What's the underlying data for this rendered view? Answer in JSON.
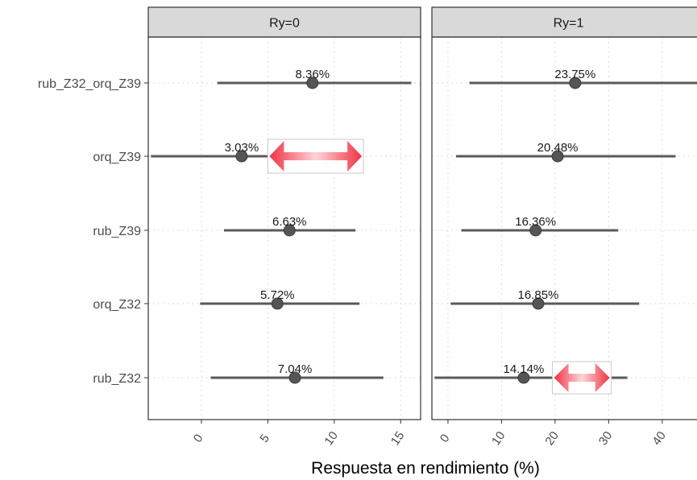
{
  "chart_data": {
    "type": "scatter",
    "subtype": "point-range (dot with interval), faceted",
    "xlabel": "Respuesta en rendimiento (%)",
    "ylabel": "",
    "categories": [
      "rub_Z32_orq_Z39",
      "orq_Z39",
      "rub_Z39",
      "orq_Z32",
      "rub_Z32"
    ],
    "grid": "on (dotted)",
    "facets": [
      {
        "title": "Ry=0",
        "xlim": [
          -4,
          16.5
        ],
        "xticks": [
          0,
          5,
          10,
          15
        ],
        "xtick_labels": [
          "0",
          "5",
          "10",
          "15"
        ],
        "points": [
          {
            "category": "rub_Z32_orq_Z39",
            "value": 8.36,
            "low": 1.2,
            "high": 15.8,
            "label": "8.36%"
          },
          {
            "category": "orq_Z39",
            "value": 3.03,
            "low": -3.8,
            "high": 9.9,
            "label": "3.03%"
          },
          {
            "category": "rub_Z39",
            "value": 6.63,
            "low": 1.7,
            "high": 11.6,
            "label": "6.63%"
          },
          {
            "category": "orq_Z32",
            "value": 5.72,
            "low": -0.1,
            "high": 11.9,
            "label": "5.72%"
          },
          {
            "category": "rub_Z32",
            "value": 7.04,
            "low": 0.7,
            "high": 13.7,
            "label": "7.04%"
          }
        ],
        "annotation": {
          "type": "double-arrow",
          "category": "orq_Z39",
          "from": 5.0,
          "to": 12.2,
          "color": "#ee3344"
        }
      },
      {
        "title": "Ry=1",
        "xlim": [
          -3,
          48
        ],
        "xticks": [
          0,
          10,
          20,
          30,
          40
        ],
        "xtick_labels": [
          "0",
          "10",
          "20",
          "30",
          "40"
        ],
        "points": [
          {
            "category": "rub_Z32_orq_Z39",
            "value": 23.75,
            "low": 4.0,
            "high": 46.5,
            "label": "23.75%"
          },
          {
            "category": "orq_Z39",
            "value": 20.48,
            "low": 1.5,
            "high": 42.5,
            "label": "20.48%"
          },
          {
            "category": "rub_Z39",
            "value": 16.36,
            "low": 2.5,
            "high": 31.8,
            "label": "16.36%"
          },
          {
            "category": "orq_Z32",
            "value": 16.85,
            "low": 0.5,
            "high": 35.7,
            "label": "16.85%"
          },
          {
            "category": "rub_Z32",
            "value": 14.14,
            "low": -2.5,
            "high": 33.5,
            "label": "14.14%"
          }
        ],
        "annotation": {
          "type": "double-arrow",
          "category": "rub_Z32",
          "from": 19.5,
          "to": 30.5,
          "color": "#ee3344"
        }
      }
    ]
  },
  "colors": {
    "strip_fill": "#d9d9d9",
    "panel_border": "#333333",
    "grid": "#dcdcdc",
    "interval": "#5a5a5a",
    "point": "#555555",
    "arrow": "#ee3344",
    "text": "#1a1a1a",
    "axis_text": "#4d4d4d"
  }
}
